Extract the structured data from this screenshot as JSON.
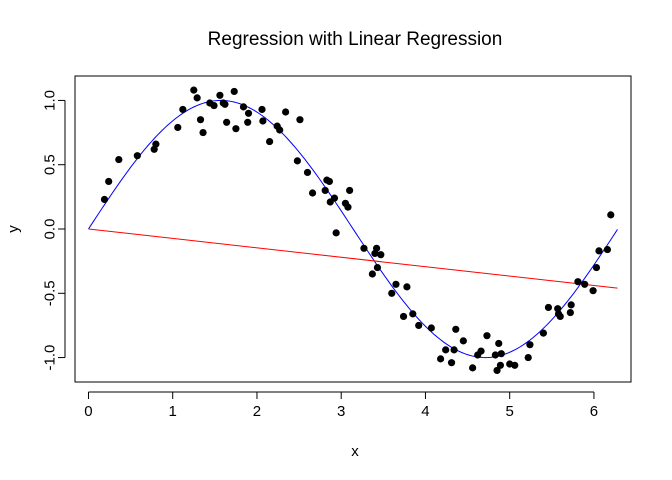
{
  "chart_data": {
    "type": "scatter",
    "title": "Regression with Linear Regression",
    "xlabel": "x",
    "ylabel": "y",
    "xlim": [
      -0.16,
      6.44
    ],
    "ylim": [
      -1.19,
      1.19
    ],
    "xticks": [
      0,
      1,
      2,
      3,
      4,
      5,
      6
    ],
    "xtick_labels": [
      "0",
      "1",
      "2",
      "3",
      "4",
      "5",
      "6"
    ],
    "yticks": [
      -1.0,
      -0.5,
      0.0,
      0.5,
      1.0
    ],
    "ytick_labels": [
      "-1.0",
      "-0.5",
      "0.0",
      "0.5",
      "1.0"
    ],
    "grid": false,
    "colors": {
      "points": "#000000",
      "true_curve": "#0000FF",
      "linear_fit": "#FF0000",
      "frame": "#000000"
    },
    "points": {
      "x": [
        0.19,
        0.24,
        0.36,
        0.58,
        0.78,
        0.8,
        1.06,
        1.12,
        1.25,
        1.29,
        1.33,
        1.36,
        1.44,
        1.49,
        1.56,
        1.6,
        1.62,
        1.64,
        1.73,
        1.75,
        1.84,
        1.89,
        1.9,
        2.06,
        2.07,
        2.15,
        2.24,
        2.27,
        2.34,
        2.48,
        2.51,
        2.6,
        2.66,
        2.81,
        2.83,
        2.86,
        2.87,
        2.92,
        2.94,
        3.05,
        3.08,
        3.1,
        3.27,
        3.37,
        3.4,
        3.42,
        3.43,
        3.47,
        3.6,
        3.65,
        3.74,
        3.78,
        3.85,
        3.92,
        4.07,
        4.18,
        4.24,
        4.31,
        4.34,
        4.36,
        4.45,
        4.56,
        4.62,
        4.66,
        4.73,
        4.83,
        4.85,
        4.87,
        4.89,
        4.9,
        5.0,
        5.06,
        5.22,
        5.24,
        5.4,
        5.46,
        5.57,
        5.58,
        5.6,
        5.72,
        5.73,
        5.81,
        5.89,
        5.99,
        6.03,
        6.06,
        6.16,
        6.2
      ],
      "y": [
        0.23,
        0.37,
        0.54,
        0.57,
        0.62,
        0.66,
        0.79,
        0.93,
        1.08,
        1.02,
        0.85,
        0.75,
        0.98,
        0.96,
        1.04,
        0.98,
        0.97,
        0.83,
        1.07,
        0.78,
        0.95,
        0.83,
        0.9,
        0.93,
        0.84,
        0.68,
        0.8,
        0.77,
        0.91,
        0.53,
        0.85,
        0.44,
        0.28,
        0.3,
        0.38,
        0.37,
        0.21,
        0.24,
        -0.03,
        0.2,
        0.17,
        0.3,
        -0.15,
        -0.35,
        -0.19,
        -0.15,
        -0.3,
        -0.2,
        -0.5,
        -0.43,
        -0.68,
        -0.45,
        -0.66,
        -0.75,
        -0.77,
        -1.01,
        -0.94,
        -1.04,
        -0.94,
        -0.78,
        -0.87,
        -1.08,
        -0.98,
        -0.95,
        -0.83,
        -0.98,
        -1.1,
        -0.89,
        -1.06,
        -0.97,
        -1.05,
        -1.06,
        -1.0,
        -0.9,
        -0.81,
        -0.61,
        -0.62,
        -0.66,
        -0.68,
        -0.65,
        -0.59,
        -0.41,
        -0.43,
        -0.48,
        -0.3,
        -0.17,
        -0.16,
        0.11
      ]
    },
    "curves": {
      "true_curve": {
        "function": "sin(x)",
        "x_range": [
          0,
          6.28
        ]
      },
      "linear_fit": {
        "x": [
          0,
          6.28
        ],
        "y": [
          0.0,
          -0.46
        ]
      }
    }
  }
}
